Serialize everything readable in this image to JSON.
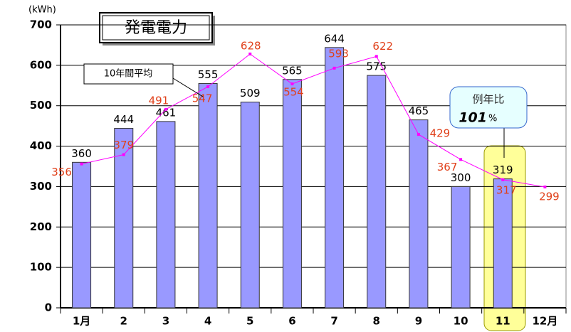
{
  "chart_data": {
    "type": "bar",
    "title": "発電電力",
    "y_unit": "(kWh)",
    "annotations": [
      "10年間平均",
      "例年比",
      "101",
      "%"
    ],
    "categories": [
      "1月",
      "2",
      "3",
      "4",
      "5",
      "6",
      "7",
      "8",
      "9",
      "10",
      "11",
      "12月"
    ],
    "series": [
      {
        "type": "bar",
        "color": "#9999ff",
        "values": [
          360,
          444,
          461,
          555,
          509,
          565,
          644,
          575,
          465,
          300,
          319,
          null
        ]
      },
      {
        "type": "line",
        "color": "#ff00ff",
        "label_color": "#e0401a",
        "values": [
          356,
          379,
          491,
          547,
          628,
          554,
          593,
          622,
          429,
          367,
          317,
          299
        ]
      }
    ],
    "highlight_color": "#ffff99",
    "ylim": [
      0,
      700
    ],
    "yticks": [
      0,
      100,
      200,
      300,
      400,
      500,
      600,
      700
    ],
    "grid": true
  }
}
